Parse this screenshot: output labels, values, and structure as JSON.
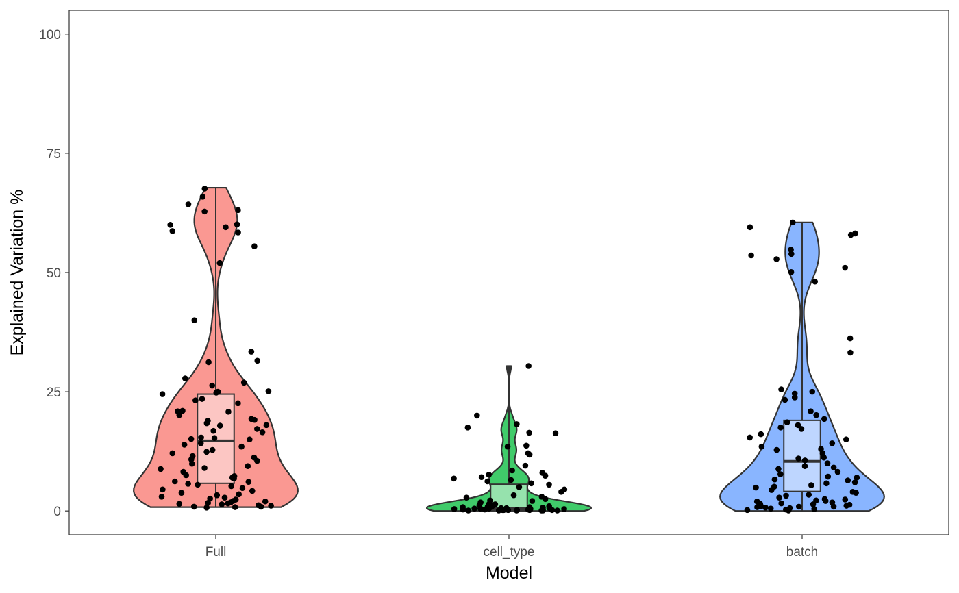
{
  "chart_data": {
    "type": "violin",
    "title": "",
    "xlabel": "Model",
    "ylabel": "Explained Variation %",
    "ylim": [
      -5,
      105
    ],
    "yticks": [
      0,
      25,
      50,
      75,
      100
    ],
    "ytick_labels": [
      "0",
      "25",
      "50",
      "75",
      "100"
    ],
    "grid": false,
    "legend": "none",
    "categories": [
      "Full",
      "cell_type",
      "batch"
    ],
    "series": [
      {
        "category": "Full",
        "color": "#F8766D",
        "box": {
          "min": 0.8,
          "q1": 5.8,
          "median": 14.7,
          "q3": 24.5,
          "max": 67.8
        },
        "points": [
          2.1,
          0.9,
          1.8,
          1.1,
          2.4,
          0.8,
          1.5,
          1.2,
          3.5,
          4.2,
          4.8,
          5.5,
          6.1,
          3.8,
          2.8,
          7.5,
          8.2,
          9.4,
          10.5,
          11.2,
          12.1,
          12.8,
          13.5,
          14.2,
          15.1,
          15.4,
          16.5,
          17.2,
          18.4,
          18.9,
          19.3,
          20.1,
          20.9,
          23.2,
          23.5,
          24.8,
          25.1,
          26.3,
          26.9,
          27.8,
          31.2,
          31.5,
          33.4,
          40.0,
          52.0,
          55.5,
          58.4,
          58.7,
          59.5,
          60.0,
          60.1,
          62.8,
          63.1,
          64.3,
          65.9,
          67.6,
          0.7,
          2.0,
          1.7,
          4.5,
          5.7,
          6.2,
          7.3,
          8.8,
          9.9,
          10.8,
          12.4,
          13.9,
          15.0,
          16.8,
          17.9,
          19.1,
          20.8,
          22.6,
          24.5,
          1.4,
          2.6,
          3.3,
          6.8,
          11.5,
          15.3,
          18.0,
          21.0,
          25.0,
          0.9,
          1.6,
          3.0,
          5.2,
          7.0,
          9.0
        ]
      },
      {
        "category": "cell_type",
        "color": "#00BA38",
        "box": {
          "min": 0.0,
          "q1": 0.2,
          "median": 0.6,
          "q3": 5.6,
          "max": 30.4
        },
        "points": [
          0.1,
          0.2,
          0.3,
          0.1,
          0.4,
          0.2,
          0.5,
          0.1,
          0.3,
          0.6,
          0.2,
          0.4,
          0.8,
          0.1,
          0.3,
          0.5,
          0.2,
          0.7,
          0.9,
          1.0,
          1.2,
          0.3,
          0.1,
          0.6,
          0.4,
          1.5,
          2.1,
          2.5,
          3.0,
          4.5,
          5.0,
          5.5,
          6.2,
          6.8,
          7.1,
          8.5,
          9.5,
          11.8,
          12.1,
          13.5,
          13.7,
          16.3,
          16.4,
          17.5,
          18.2,
          20.0,
          30.4,
          0.2,
          0.5,
          0.8,
          1.1,
          1.4,
          1.8,
          2.2,
          2.8,
          3.3,
          4.0,
          5.8,
          6.5,
          7.4,
          8.0,
          7.6,
          0.6,
          0.3,
          0.1,
          0.2,
          0.9
        ]
      },
      {
        "category": "batch",
        "color": "#619CFF",
        "box": {
          "min": 0.0,
          "q1": 4.1,
          "median": 10.4,
          "q3": 19.0,
          "max": 60.5
        },
        "points": [
          0.2,
          0.4,
          0.6,
          0.8,
          1.0,
          1.2,
          1.5,
          1.8,
          2.1,
          2.5,
          0.3,
          0.5,
          0.9,
          1.3,
          1.6,
          2.0,
          2.4,
          3.2,
          3.8,
          4.4,
          5.1,
          5.4,
          6.0,
          6.6,
          7.2,
          7.7,
          8.2,
          8.8,
          9.4,
          10.0,
          10.6,
          11.2,
          12.1,
          12.8,
          13.5,
          14.2,
          15.4,
          16.1,
          17.2,
          18.0,
          18.6,
          19.3,
          20.1,
          20.9,
          23.3,
          23.8,
          24.6,
          25.0,
          25.5,
          33.2,
          36.2,
          48.1,
          50.1,
          51.0,
          52.8,
          53.6,
          53.9,
          54.8,
          57.9,
          58.2,
          59.5,
          60.5,
          0.1,
          0.7,
          1.1,
          2.8,
          4.0,
          5.8,
          7.0,
          9.1,
          11.0,
          13.0,
          15.0,
          17.5,
          0.9,
          1.4,
          2.2,
          3.4,
          4.9,
          6.4
        ]
      }
    ]
  }
}
